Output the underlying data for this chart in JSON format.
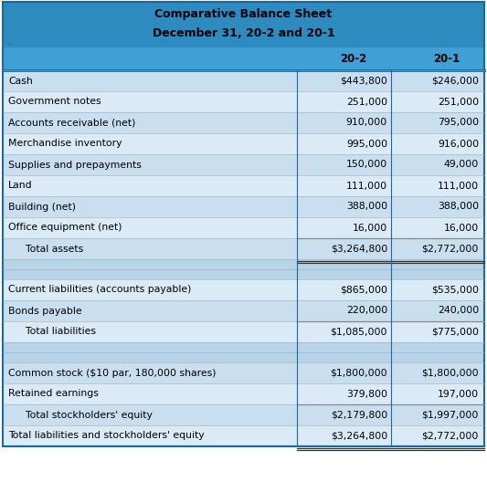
{
  "title_line1": "Comparative Balance Sheet",
  "title_line2": "December 31, 20-2 and 20-1",
  "col_headers": [
    "20-2",
    "20-1"
  ],
  "rows": [
    {
      "label": "Cash",
      "v1": "$443,800",
      "v2": "$246,000",
      "indent": false,
      "bold": false,
      "separator_above": false,
      "blank": false,
      "double_below": false
    },
    {
      "label": "Government notes",
      "v1": "251,000",
      "v2": "251,000",
      "indent": false,
      "bold": false,
      "separator_above": false,
      "blank": false,
      "double_below": false
    },
    {
      "label": "Accounts receivable (net)",
      "v1": "910,000",
      "v2": "795,000",
      "indent": false,
      "bold": false,
      "separator_above": false,
      "blank": false,
      "double_below": false
    },
    {
      "label": "Merchandise inventory",
      "v1": "995,000",
      "v2": "916,000",
      "indent": false,
      "bold": false,
      "separator_above": false,
      "blank": false,
      "double_below": false
    },
    {
      "label": "Supplies and prepayments",
      "v1": "150,000",
      "v2": "49,000",
      "indent": false,
      "bold": false,
      "separator_above": false,
      "blank": false,
      "double_below": false
    },
    {
      "label": "Land",
      "v1": "111,000",
      "v2": "111,000",
      "indent": false,
      "bold": false,
      "separator_above": false,
      "blank": false,
      "double_below": false
    },
    {
      "label": "Building (net)",
      "v1": "388,000",
      "v2": "388,000",
      "indent": false,
      "bold": false,
      "separator_above": false,
      "blank": false,
      "double_below": false
    },
    {
      "label": "Office equipment (net)",
      "v1": "16,000",
      "v2": "16,000",
      "indent": false,
      "bold": false,
      "separator_above": false,
      "blank": false,
      "double_below": false
    },
    {
      "label": "  Total assets",
      "v1": "$3,264,800",
      "v2": "$2,772,000",
      "indent": true,
      "bold": false,
      "separator_above": true,
      "blank": false,
      "double_below": true
    },
    {
      "label": "",
      "v1": "",
      "v2": "",
      "indent": false,
      "bold": false,
      "separator_above": false,
      "blank": true,
      "double_below": false
    },
    {
      "label": "",
      "v1": "",
      "v2": "",
      "indent": false,
      "bold": false,
      "separator_above": false,
      "blank": true,
      "double_below": false
    },
    {
      "label": "Current liabilities (accounts payable)",
      "v1": "$865,000",
      "v2": "$535,000",
      "indent": false,
      "bold": false,
      "separator_above": false,
      "blank": false,
      "double_below": false
    },
    {
      "label": "Bonds payable",
      "v1": "220,000",
      "v2": "240,000",
      "indent": false,
      "bold": false,
      "separator_above": false,
      "blank": false,
      "double_below": false
    },
    {
      "label": "  Total liabilities",
      "v1": "$1,085,000",
      "v2": "$775,000",
      "indent": true,
      "bold": false,
      "separator_above": true,
      "blank": false,
      "double_below": false
    },
    {
      "label": "",
      "v1": "",
      "v2": "",
      "indent": false,
      "bold": false,
      "separator_above": false,
      "blank": true,
      "double_below": false
    },
    {
      "label": "",
      "v1": "",
      "v2": "",
      "indent": false,
      "bold": false,
      "separator_above": false,
      "blank": true,
      "double_below": false
    },
    {
      "label": "Common stock ($10 par, 180,000 shares)",
      "v1": "$1,800,000",
      "v2": "$1,800,000",
      "indent": false,
      "bold": false,
      "separator_above": false,
      "blank": false,
      "double_below": false
    },
    {
      "label": "Retained earnings",
      "v1": "379,800",
      "v2": "197,000",
      "indent": false,
      "bold": false,
      "separator_above": false,
      "blank": false,
      "double_below": false
    },
    {
      "label": "  Total stockholders' equity",
      "v1": "$2,179,800",
      "v2": "$1,997,000",
      "indent": true,
      "bold": false,
      "separator_above": true,
      "blank": false,
      "double_below": false
    },
    {
      "label": "Total liabilities and stockholders' equity",
      "v1": "$3,264,800",
      "v2": "$2,772,000",
      "indent": false,
      "bold": false,
      "separator_above": false,
      "blank": false,
      "double_below": true
    }
  ],
  "header_bg": "#2d8bbf",
  "col_header_bg": "#3fa0d5",
  "row_bg_odd": "#c9dff0",
  "row_bg_even": "#daeaf7",
  "total_bg": "#a8c8e0",
  "blank_bg": "#b8d4e8",
  "sep_line_color": "#888888",
  "border_color": "#1a6a9a",
  "text_color": "#000000",
  "font_size": 7.8,
  "title_font_size": 9.0,
  "col_header_font_size": 8.5
}
